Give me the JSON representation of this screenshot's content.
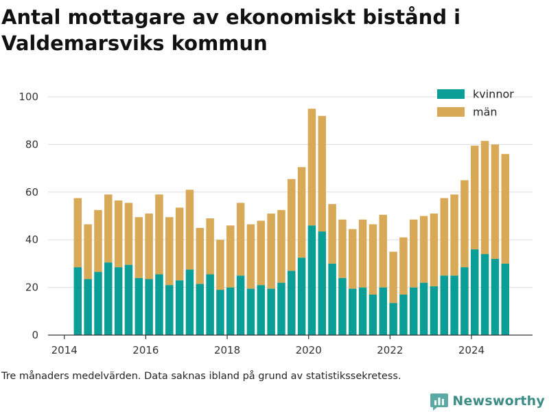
{
  "title": "Antal mottagare av ekonomiskt bistånd i Valdemarsviks kommun",
  "footnote": "Tre månaders medelvärden. Data saknas ibland på grund av statistikssekretess.",
  "brand": {
    "name": "Newsworthy",
    "icon": "newsworthy-logo-icon"
  },
  "chart_data": {
    "type": "bar",
    "stacked": true,
    "ylim": [
      0,
      100
    ],
    "yticks": [
      0,
      20,
      40,
      60,
      80,
      100
    ],
    "xlim": [
      2013.6,
      2025.5
    ],
    "xticks": [
      2014,
      2016,
      2018,
      2020,
      2022,
      2024
    ],
    "grid": "horizontal",
    "legend": "top-right",
    "x": [
      2014.33,
      2014.58,
      2014.83,
      2015.08,
      2015.33,
      2015.58,
      2015.83,
      2016.08,
      2016.33,
      2016.58,
      2016.83,
      2017.08,
      2017.33,
      2017.58,
      2017.83,
      2018.08,
      2018.33,
      2018.58,
      2018.83,
      2019.08,
      2019.33,
      2019.58,
      2019.83,
      2020.08,
      2020.33,
      2020.58,
      2020.83,
      2021.08,
      2021.33,
      2021.58,
      2021.83,
      2022.08,
      2022.33,
      2022.58,
      2022.83,
      2023.08,
      2023.33,
      2023.58,
      2023.83,
      2024.08,
      2024.33,
      2024.58,
      2024.83
    ],
    "series": [
      {
        "name": "kvinnor",
        "color": "#0a9e96",
        "values": [
          28.5,
          23.5,
          26.5,
          30.5,
          28.5,
          29.5,
          24.0,
          23.5,
          25.5,
          21.0,
          23.0,
          27.5,
          21.5,
          25.5,
          19.0,
          20.0,
          25.0,
          19.5,
          21.0,
          19.5,
          22.0,
          27.0,
          32.5,
          46.0,
          43.5,
          30.0,
          24.0,
          19.5,
          20.0,
          17.0,
          20.0,
          13.5,
          17.0,
          20.0,
          22.0,
          20.5,
          25.0,
          25.0,
          28.5,
          36.0,
          34.0,
          32.0,
          30.0
        ]
      },
      {
        "name": "män",
        "color": "#d8a957",
        "values": [
          29.0,
          23.0,
          26.0,
          28.5,
          28.0,
          26.0,
          25.5,
          27.5,
          33.5,
          28.5,
          30.5,
          33.5,
          23.5,
          23.5,
          21.0,
          26.0,
          30.5,
          27.0,
          27.0,
          31.5,
          30.5,
          38.5,
          38.0,
          49.0,
          48.5,
          25.0,
          24.5,
          25.0,
          28.5,
          29.5,
          30.5,
          21.5,
          24.0,
          28.5,
          28.0,
          30.5,
          32.5,
          34.0,
          36.5,
          43.5,
          47.5,
          48.0,
          46.0
        ]
      }
    ]
  }
}
